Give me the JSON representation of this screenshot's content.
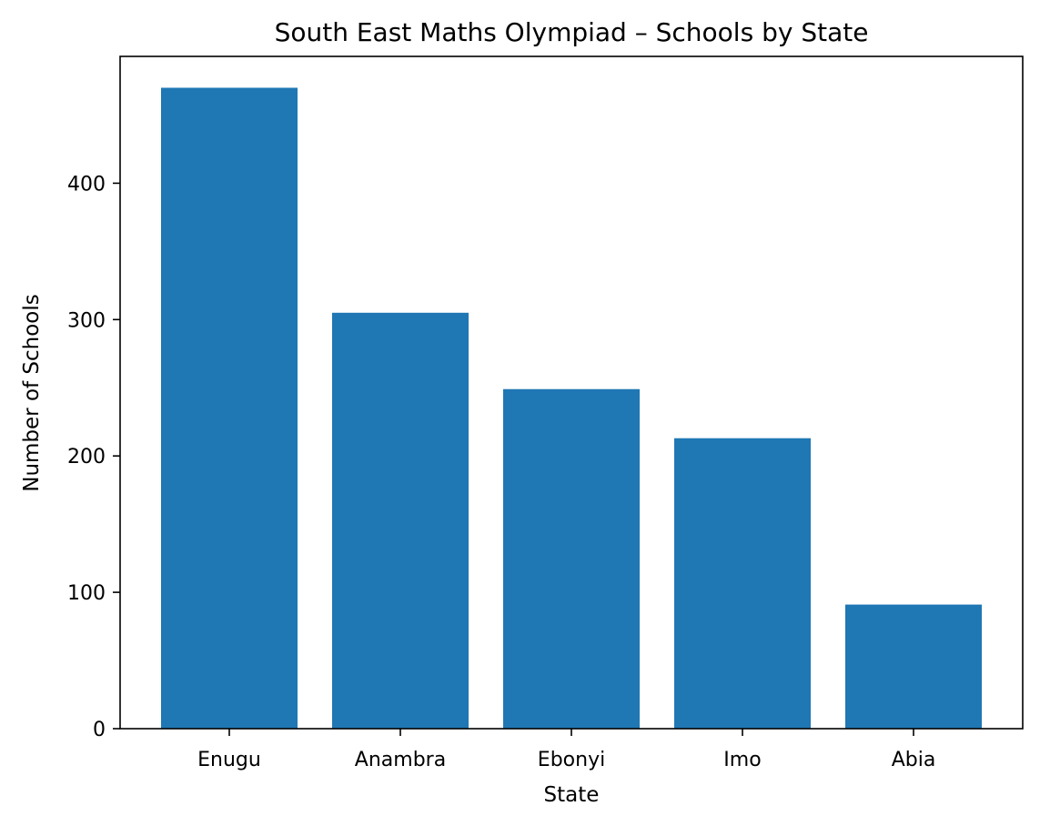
{
  "chart_data": {
    "type": "bar",
    "title": "South East Maths Olympiad – Schools by State",
    "xlabel": "State",
    "ylabel": "Number of Schools",
    "categories": [
      "Enugu",
      "Anambra",
      "Ebonyi",
      "Imo",
      "Abia"
    ],
    "values": [
      470,
      305,
      249,
      213,
      91
    ],
    "ylim": [
      0,
      493
    ],
    "yticks": [
      0,
      100,
      200,
      300,
      400
    ],
    "ytick_labels": [
      "0",
      "100",
      "200",
      "300",
      "400"
    ],
    "bar_color": "#1f77b4",
    "grid": false,
    "legend": "none"
  }
}
